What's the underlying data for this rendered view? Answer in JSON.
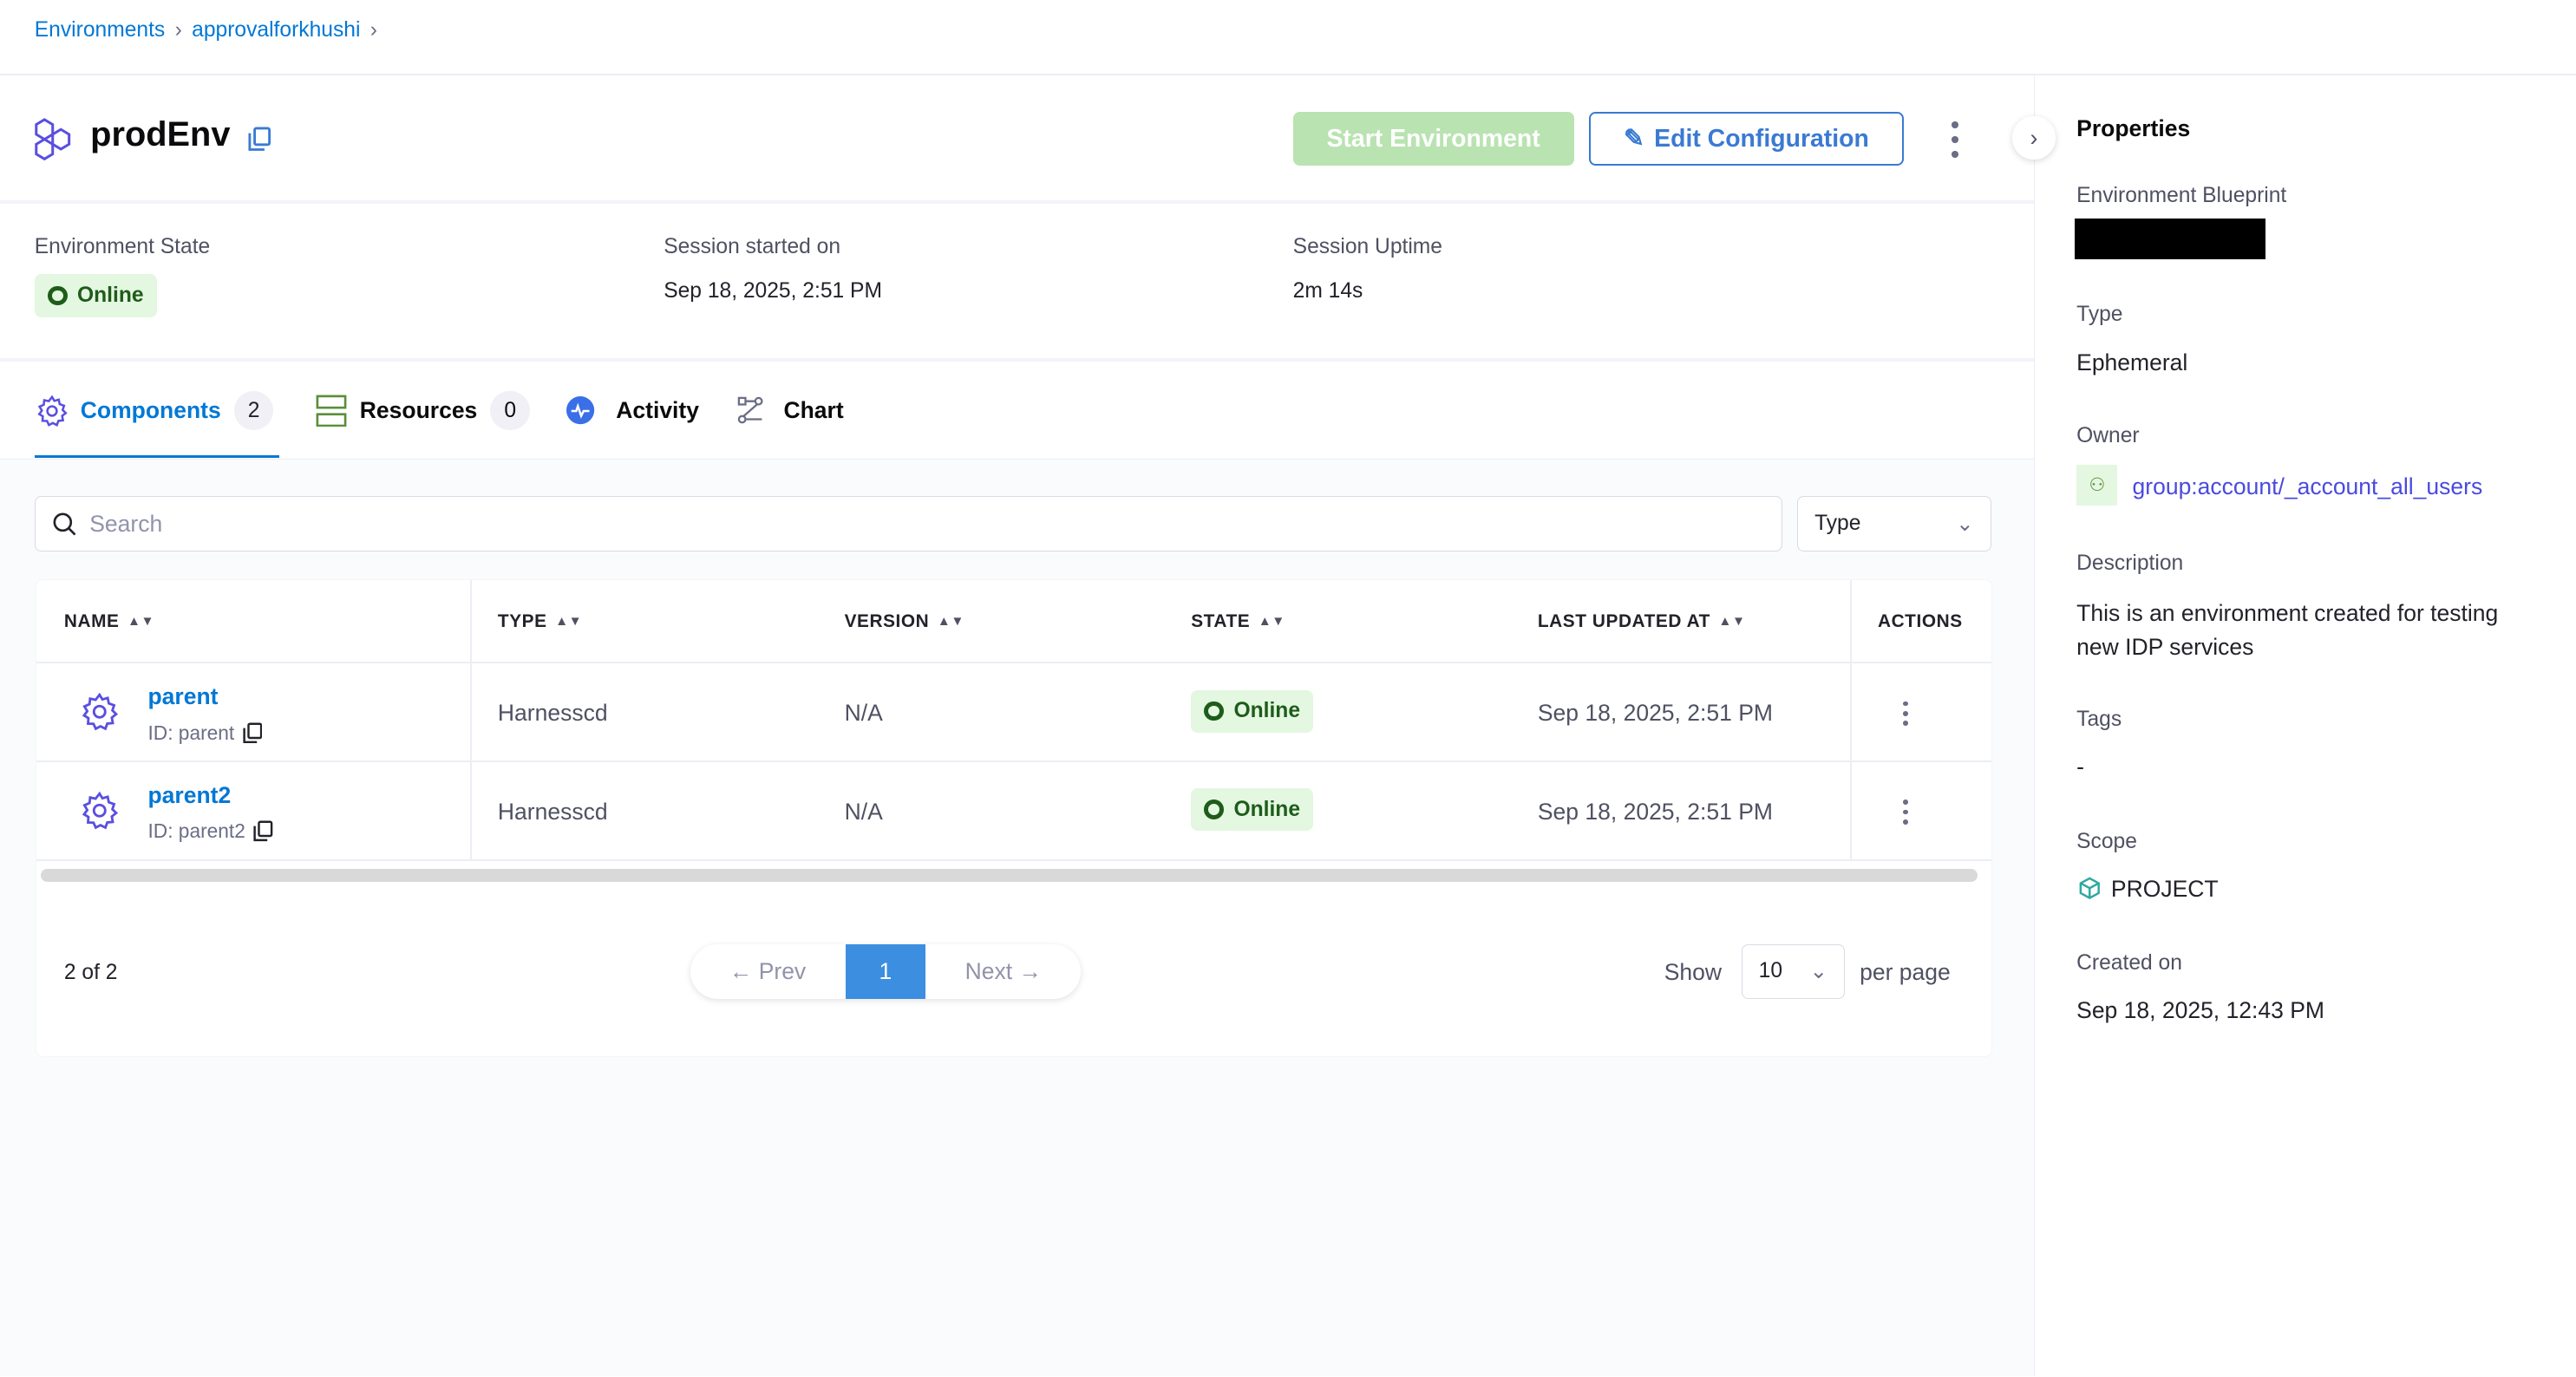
{
  "breadcrumbs": [
    "Environments",
    "approvalforkhushi"
  ],
  "header": {
    "title": "prodEnv",
    "start_label": "Start Environment",
    "edit_label": "Edit Configuration"
  },
  "info": {
    "state_label": "Environment State",
    "state_value": "Online",
    "session_label": "Session started on",
    "session_value": "Sep 18, 2025, 2:51 PM",
    "uptime_label": "Session Uptime",
    "uptime_value": "2m 14s"
  },
  "tabs": [
    {
      "label": "Components",
      "count": "2",
      "active": true
    },
    {
      "label": "Resources",
      "count": "0"
    },
    {
      "label": "Activity"
    },
    {
      "label": "Chart"
    }
  ],
  "search": {
    "placeholder": "Search"
  },
  "type_filter": "Type",
  "table": {
    "columns": [
      "NAME",
      "TYPE",
      "VERSION",
      "STATE",
      "LAST UPDATED AT",
      "ACTIONS"
    ],
    "rows": [
      {
        "name": "parent",
        "id": "ID: parent",
        "type": "Harnesscd",
        "version": "N/A",
        "state": "Online",
        "updated": "Sep 18, 2025, 2:51 PM"
      },
      {
        "name": "parent2",
        "id": "ID: parent2",
        "type": "Harnesscd",
        "version": "N/A",
        "state": "Online",
        "updated": "Sep 18, 2025, 2:51 PM"
      }
    ]
  },
  "pagination": {
    "summary": "2 of 2",
    "prev": "← Prev",
    "page": "1",
    "next": "Next →",
    "show": "Show",
    "per_page_value": "10",
    "per_page": "per page"
  },
  "properties": {
    "title": "Properties",
    "blueprint_label": "Environment Blueprint",
    "type_label": "Type",
    "type_value": "Ephemeral",
    "owner_label": "Owner",
    "owner_value": "group:account/_account_all_users",
    "description_label": "Description",
    "description_value": "This is an environment created for testing new IDP services",
    "tags_label": "Tags",
    "tags_value": "-",
    "scope_label": "Scope",
    "scope_value": "PROJECT",
    "created_label": "Created on",
    "created_value": "Sep 18, 2025, 12:43 PM"
  },
  "colors": {
    "accent": "#0278d5",
    "online_bg": "#e4f7e1",
    "online_text": "#1e5c1a",
    "start_button": "#b9e3b1"
  }
}
